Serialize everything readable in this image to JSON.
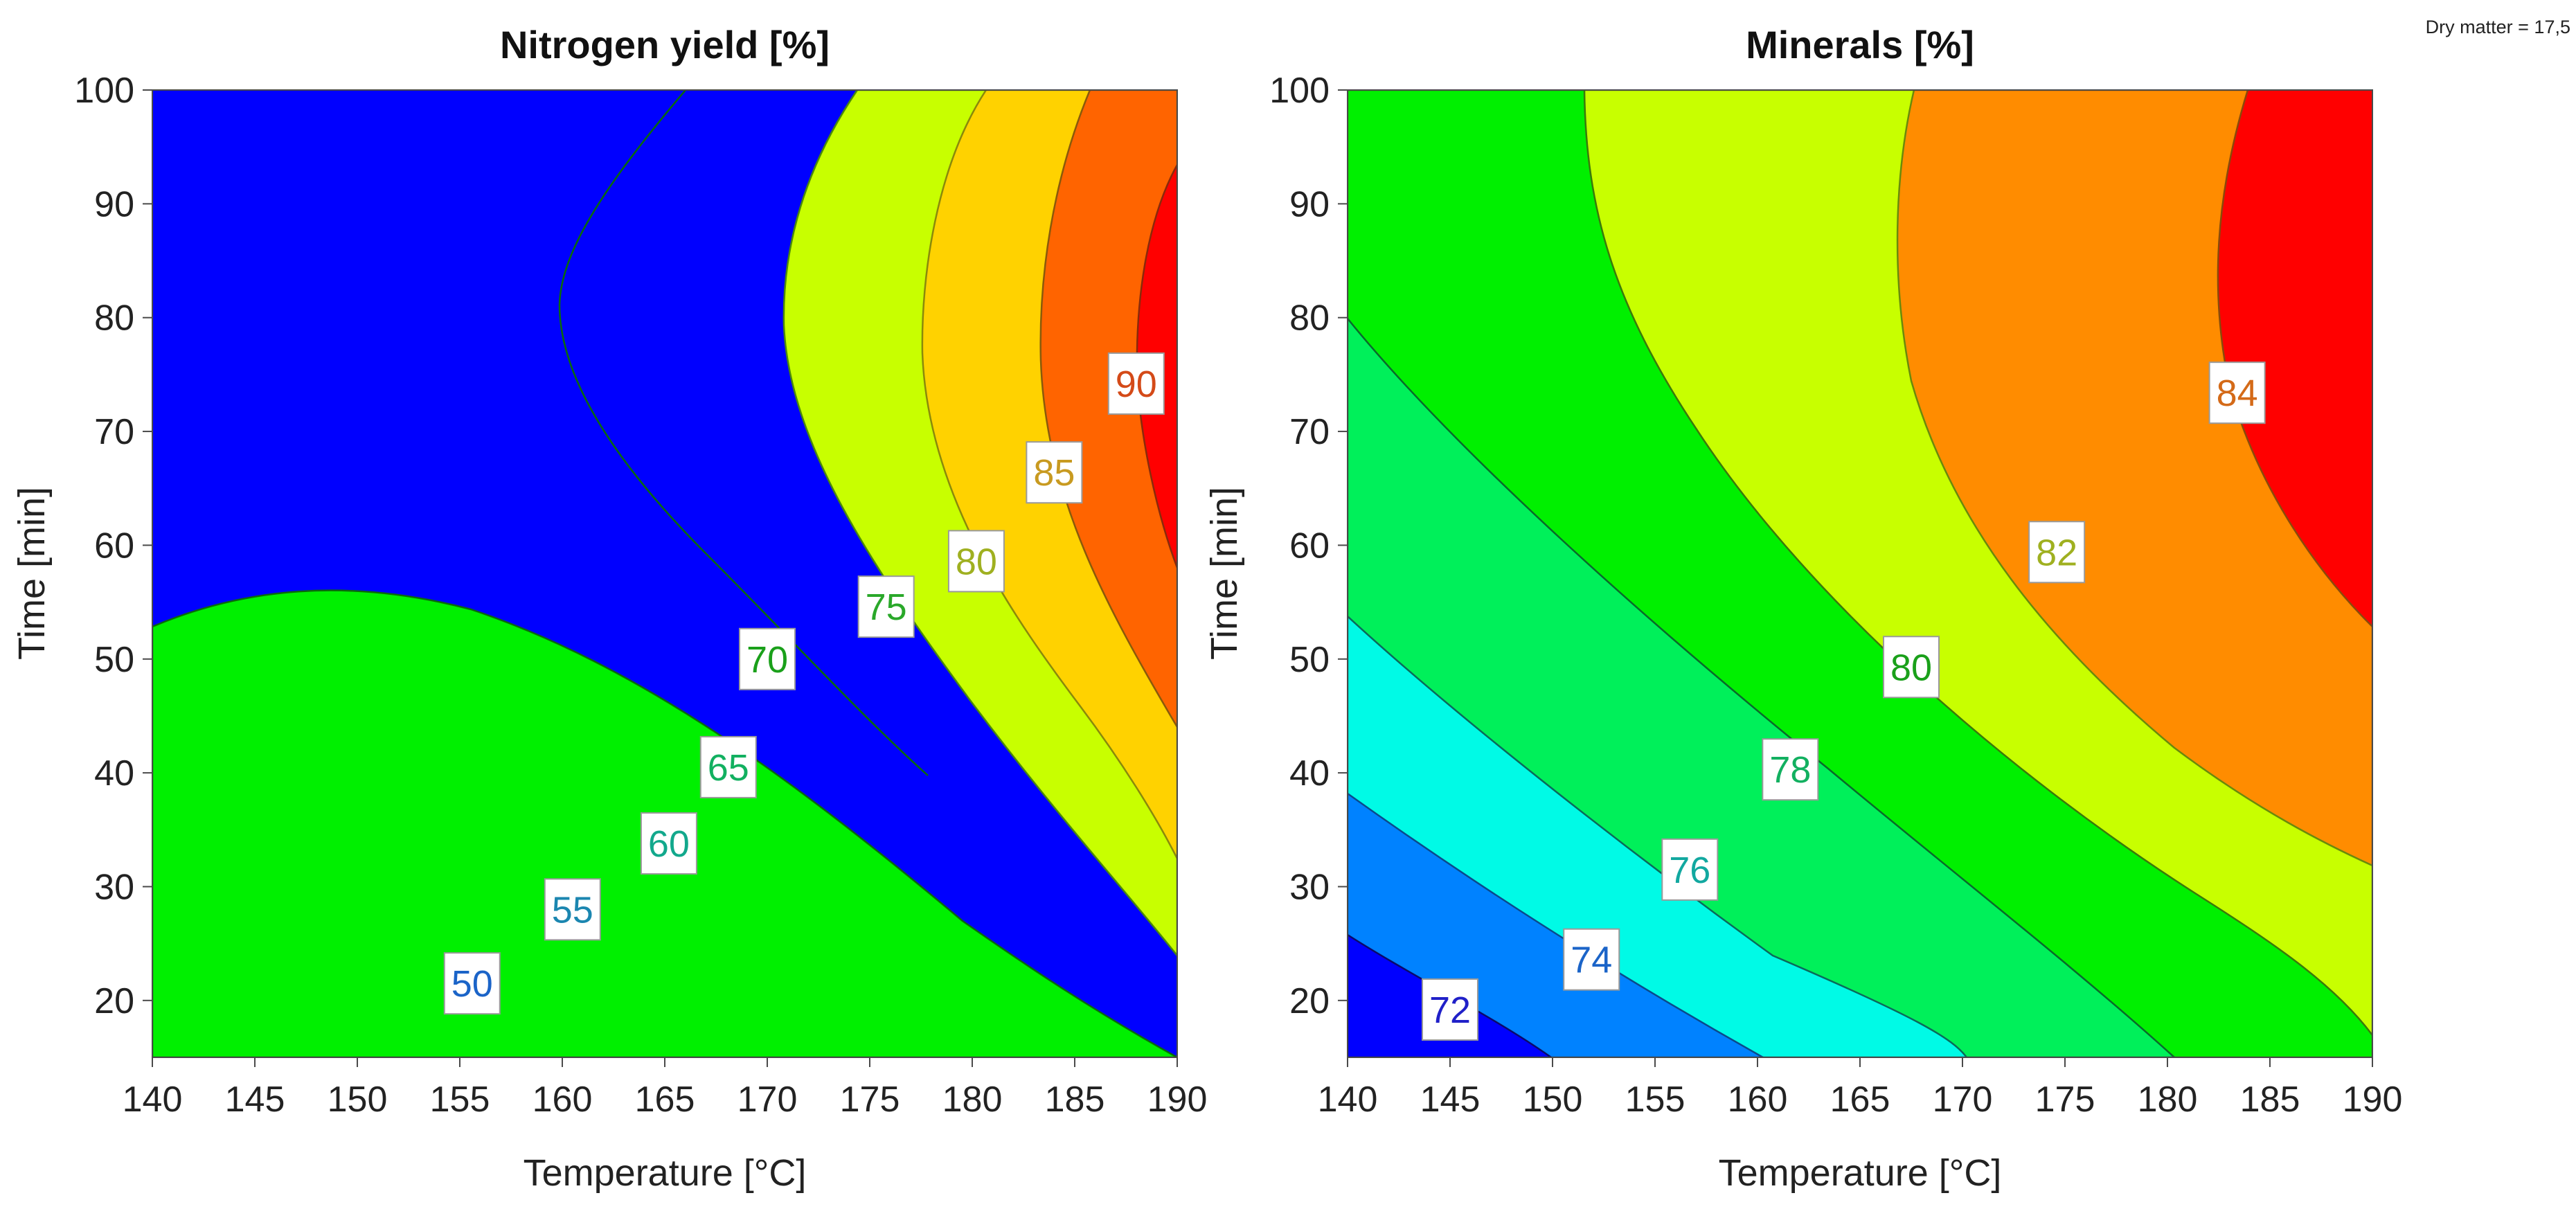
{
  "figure": {
    "annotation": "Dry matter = 17,5"
  },
  "chart_data": [
    {
      "type": "contour",
      "title": "Nitrogen yield [%]",
      "xlabel": "Temperature [°C]",
      "ylabel": "Time [min]",
      "xlim": [
        140,
        190
      ],
      "ylim": [
        15,
        100
      ],
      "xticks": [
        140,
        145,
        150,
        155,
        160,
        165,
        170,
        175,
        180,
        185,
        190
      ],
      "yticks": [
        20,
        30,
        40,
        50,
        60,
        70,
        80,
        90,
        100
      ],
      "levels": [
        50,
        55,
        60,
        65,
        70,
        75,
        80,
        85,
        90
      ],
      "band_colors": [
        "#0000ff",
        "#0064ff",
        "#00c8ff",
        "#00f5d0",
        "#00f05a",
        "#00f000",
        "#c8ff00",
        "#ffd200",
        "#ff6400",
        "#ff0000"
      ],
      "contour_labels": [
        {
          "text": "50",
          "x": 155.6,
          "y": 21.5,
          "color": "#1b64c8"
        },
        {
          "text": "55",
          "x": 160.5,
          "y": 28.0,
          "color": "#1b86b0"
        },
        {
          "text": "60",
          "x": 165.2,
          "y": 33.8,
          "color": "#12a88c"
        },
        {
          "text": "65",
          "x": 168.1,
          "y": 40.5,
          "color": "#12b060"
        },
        {
          "text": "70",
          "x": 170.0,
          "y": 50.0,
          "color": "#1aa01a"
        },
        {
          "text": "75",
          "x": 175.8,
          "y": 54.6,
          "color": "#2aa82a"
        },
        {
          "text": "80",
          "x": 180.2,
          "y": 58.6,
          "color": "#9fb020"
        },
        {
          "text": "85",
          "x": 184.0,
          "y": 66.4,
          "color": "#c89a20"
        },
        {
          "text": "90",
          "x": 188.0,
          "y": 74.2,
          "color": "#d44a18"
        }
      ]
    },
    {
      "type": "contour",
      "title": "Minerals [%]",
      "xlabel": "Temperature [°C]",
      "ylabel": "Time [min]",
      "xlim": [
        140,
        190
      ],
      "ylim": [
        15,
        100
      ],
      "xticks": [
        140,
        145,
        150,
        155,
        160,
        165,
        170,
        175,
        180,
        185,
        190
      ],
      "yticks": [
        20,
        30,
        40,
        50,
        60,
        70,
        80,
        90,
        100
      ],
      "levels": [
        72,
        74,
        76,
        78,
        80,
        82,
        84
      ],
      "band_colors": [
        "#0000ff",
        "#0082ff",
        "#00fae6",
        "#00f05a",
        "#00f000",
        "#c8ff00",
        "#ff8c00",
        "#ff0000"
      ],
      "contour_labels": [
        {
          "text": "72",
          "x": 145.0,
          "y": 19.2,
          "color": "#2020c8"
        },
        {
          "text": "74",
          "x": 151.9,
          "y": 23.6,
          "color": "#1b64c8"
        },
        {
          "text": "76",
          "x": 156.7,
          "y": 31.5,
          "color": "#12a8a0"
        },
        {
          "text": "78",
          "x": 161.6,
          "y": 40.3,
          "color": "#12b060"
        },
        {
          "text": "80",
          "x": 167.5,
          "y": 49.3,
          "color": "#1aa01a"
        },
        {
          "text": "82",
          "x": 174.6,
          "y": 59.4,
          "color": "#9fb020"
        },
        {
          "text": "84",
          "x": 183.4,
          "y": 73.4,
          "color": "#d46a18"
        }
      ]
    }
  ]
}
